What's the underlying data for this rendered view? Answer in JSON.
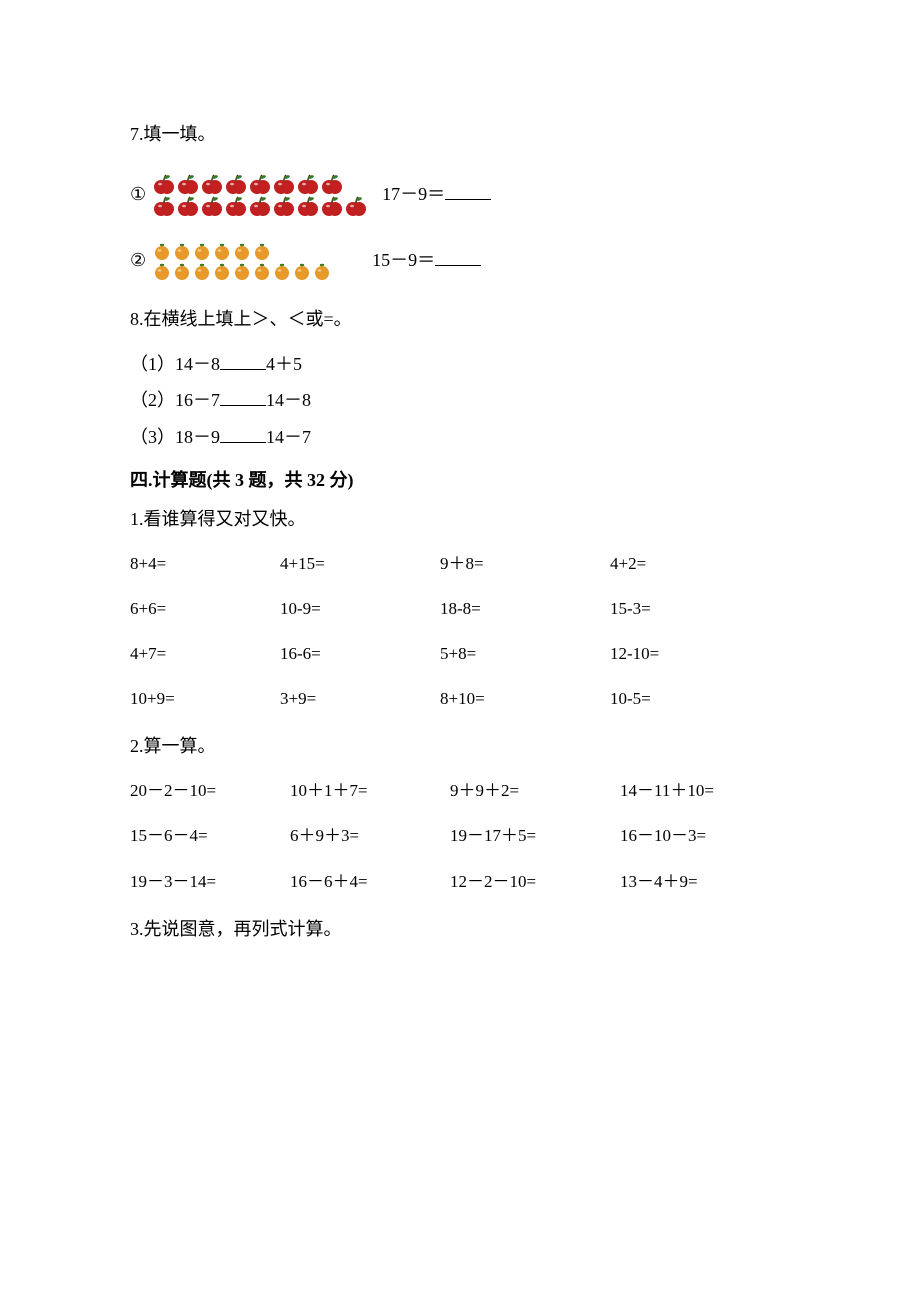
{
  "q7": {
    "title": "7.填一填。",
    "p1": {
      "marker": "①",
      "rows": [
        8,
        9
      ],
      "fruit": "apple",
      "color": "#c12020",
      "leaf": "#3a7a2a",
      "stem": "#4a2a10",
      "expr": "17－9＝"
    },
    "p2": {
      "marker": "②",
      "rows": [
        6,
        9
      ],
      "fruit": "orange",
      "color": "#e79a2a",
      "leaf": "#3a7a2a",
      "expr": "15－9＝"
    }
  },
  "q8": {
    "title": "8.在横线上填上＞、＜或=。",
    "items": [
      {
        "n": "（1）",
        "left": "14－8",
        "right": "4＋5"
      },
      {
        "n": "（2）",
        "left": "16－7",
        "right": "14－8"
      },
      {
        "n": "（3）",
        "left": "18－9",
        "right": "14－7"
      }
    ]
  },
  "sec4": {
    "head": "四.计算题(共 3 题，共 32 分)",
    "q1": {
      "title": "1.看谁算得又对又快。",
      "cells": [
        "8+4=",
        "4+15=",
        "9＋8=",
        "4+2=",
        "6+6=",
        "10-9=",
        "18-8=",
        "15-3=",
        "4+7=",
        "16-6=",
        "5+8=",
        "12-10=",
        "10+9=",
        "3+9=",
        "8+10=",
        "10-5="
      ]
    },
    "q2": {
      "title": "2.算一算。",
      "cells": [
        "20－2－10=",
        "10＋1＋7=",
        "9＋9＋2=",
        "14－11＋10=",
        "15－6－4=",
        "6＋9＋3=",
        "19－17＋5=",
        "16－10－3=",
        "19－3－14=",
        "16－6＋4=",
        "12－2－10=",
        "13－4＋9="
      ]
    },
    "q3": {
      "title": "3.先说图意，再列式计算。"
    }
  }
}
